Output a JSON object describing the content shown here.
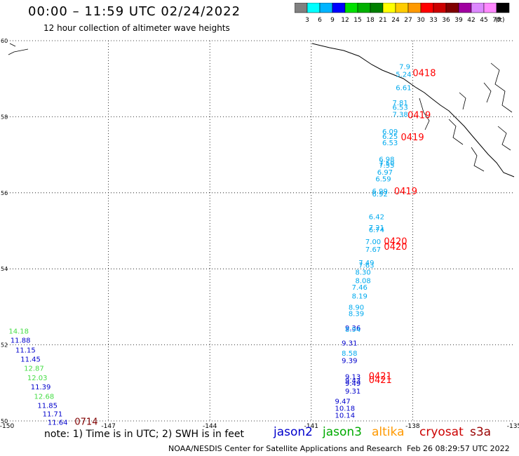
{
  "header": {
    "title": "00:00 – 11:59 UTC 02/24/2022",
    "subtitle": "12 hour collection of altimeter wave heights"
  },
  "colorbar": {
    "unit": "(ft)",
    "segments": [
      {
        "color": "#808080",
        "label": "3"
      },
      {
        "color": "#00ffff",
        "label": "6"
      },
      {
        "color": "#00b4ff",
        "label": "9"
      },
      {
        "color": "#0000ff",
        "label": "12"
      },
      {
        "color": "#00e000",
        "label": "15"
      },
      {
        "color": "#00b000",
        "label": "18"
      },
      {
        "color": "#008000",
        "label": "21"
      },
      {
        "color": "#ffff00",
        "label": "24"
      },
      {
        "color": "#ffcc00",
        "label": "27"
      },
      {
        "color": "#ff9900",
        "label": "30"
      },
      {
        "color": "#ff0000",
        "label": "33"
      },
      {
        "color": "#cc0000",
        "label": "36"
      },
      {
        "color": "#800000",
        "label": "39"
      },
      {
        "color": "#a000a0",
        "label": "42"
      },
      {
        "color": "#dd88ff",
        "label": "45"
      },
      {
        "color": "#ff88ff",
        "label": "70"
      },
      {
        "color": "#000000",
        "label": ""
      }
    ]
  },
  "map": {
    "lon_range": [
      -150,
      -135
    ],
    "lat_range": [
      50,
      60
    ],
    "lon_ticks": [
      "-150",
      "-147",
      "-144",
      "-141",
      "-138",
      "-135"
    ],
    "lat_ticks": [
      "60",
      "58",
      "56",
      "54",
      "52",
      "50"
    ],
    "gridlines": true
  },
  "colors": {
    "cryosat": "#00aaee",
    "jason3_green": "#44dd44",
    "jason2_blue": "#0000cc",
    "time_red": "#ff0000",
    "time_dark": "#800000"
  },
  "observations": [
    {
      "track": "east",
      "lon": -138.4,
      "lat": 59.25,
      "value": "7.9",
      "color": "#00aaee"
    },
    {
      "track": "east",
      "lon": -138.5,
      "lat": 59.05,
      "value": "5.24",
      "color": "#00aaee"
    },
    {
      "track": "east",
      "lon": -138.5,
      "lat": 58.7,
      "value": "6.61",
      "color": "#00aaee"
    },
    {
      "track": "east",
      "lon": -138.6,
      "lat": 58.3,
      "value": "7.81",
      "color": "#00aaee"
    },
    {
      "track": "east",
      "lon": -138.6,
      "lat": 58.18,
      "value": "6.53",
      "color": "#00aaee"
    },
    {
      "track": "east",
      "lon": -138.6,
      "lat": 58.0,
      "value": "7.38",
      "color": "#00aaee"
    },
    {
      "track": "east",
      "lon": -138.9,
      "lat": 57.55,
      "value": "6.09",
      "color": "#00aaee"
    },
    {
      "track": "east",
      "lon": -138.9,
      "lat": 57.42,
      "value": "6.25",
      "color": "#00aaee"
    },
    {
      "track": "east",
      "lon": -138.9,
      "lat": 57.25,
      "value": "6.53",
      "color": "#00aaee"
    },
    {
      "track": "east",
      "lon": -139.0,
      "lat": 56.82,
      "value": "6.98",
      "color": "#00aaee"
    },
    {
      "track": "east",
      "lon": -139.0,
      "lat": 56.72,
      "value": "7.50",
      "color": "#00aaee"
    },
    {
      "track": "east",
      "lon": -139.0,
      "lat": 56.66,
      "value": "7.55",
      "color": "#00aaee"
    },
    {
      "track": "east",
      "lon": -139.05,
      "lat": 56.48,
      "value": "6.97",
      "color": "#00aaee"
    },
    {
      "track": "east",
      "lon": -139.1,
      "lat": 56.3,
      "value": "6.59",
      "color": "#00aaee"
    },
    {
      "track": "east",
      "lon": -139.2,
      "lat": 55.98,
      "value": "6.99",
      "color": "#00aaee"
    },
    {
      "track": "east",
      "lon": -139.2,
      "lat": 55.9,
      "value": "6.92",
      "color": "#00aaee"
    },
    {
      "track": "east",
      "lon": -139.3,
      "lat": 55.3,
      "value": "6.42",
      "color": "#00aaee"
    },
    {
      "track": "east",
      "lon": -139.3,
      "lat": 55.02,
      "value": "7.21",
      "color": "#00aaee"
    },
    {
      "track": "east",
      "lon": -139.3,
      "lat": 54.96,
      "value": "6.74",
      "color": "#00aaee"
    },
    {
      "track": "east",
      "lon": -139.4,
      "lat": 54.65,
      "value": "7.00",
      "color": "#00aaee"
    },
    {
      "track": "east",
      "lon": -139.4,
      "lat": 54.45,
      "value": "7.67",
      "color": "#00aaee"
    },
    {
      "track": "east",
      "lon": -139.6,
      "lat": 54.1,
      "value": "7.49",
      "color": "#00aaee"
    },
    {
      "track": "east",
      "lon": -139.6,
      "lat": 54.03,
      "value": "7.63",
      "color": "#00aaee"
    },
    {
      "track": "east",
      "lon": -139.7,
      "lat": 53.85,
      "value": "8.30",
      "color": "#00aaee"
    },
    {
      "track": "east",
      "lon": -139.7,
      "lat": 53.63,
      "value": "8.08",
      "color": "#00aaee"
    },
    {
      "track": "east",
      "lon": -139.8,
      "lat": 53.45,
      "value": "7.46",
      "color": "#00aaee"
    },
    {
      "track": "east",
      "lon": -139.8,
      "lat": 53.22,
      "value": "8.19",
      "color": "#00aaee"
    },
    {
      "track": "east",
      "lon": -139.9,
      "lat": 52.92,
      "value": "8.90",
      "color": "#00aaee"
    },
    {
      "track": "east",
      "lon": -139.9,
      "lat": 52.76,
      "value": "8.39",
      "color": "#00aaee"
    },
    {
      "track": "east",
      "lon": -140.0,
      "lat": 52.38,
      "value": "9.36",
      "color": "#0000cc"
    },
    {
      "track": "east",
      "lon": -140.0,
      "lat": 52.34,
      "value": "8.94",
      "color": "#00aaee"
    },
    {
      "track": "east",
      "lon": -140.1,
      "lat": 51.98,
      "value": "9.31",
      "color": "#0000cc"
    },
    {
      "track": "east",
      "lon": -140.1,
      "lat": 51.72,
      "value": "8.58",
      "color": "#00aaee"
    },
    {
      "track": "east",
      "lon": -140.1,
      "lat": 51.52,
      "value": "9.39",
      "color": "#0000cc"
    },
    {
      "track": "east",
      "lon": -140.0,
      "lat": 51.1,
      "value": "9.13",
      "color": "#0000cc"
    },
    {
      "track": "east",
      "lon": -140.0,
      "lat": 51.0,
      "value": "9.43",
      "color": "#0000cc"
    },
    {
      "track": "east",
      "lon": -140.0,
      "lat": 50.92,
      "value": "9.49",
      "color": "#0000cc"
    },
    {
      "track": "east",
      "lon": -140.0,
      "lat": 50.72,
      "value": "9.31",
      "color": "#0000cc"
    },
    {
      "track": "east",
      "lon": -140.3,
      "lat": 50.45,
      "value": "9.47",
      "color": "#0000cc"
    },
    {
      "track": "east",
      "lon": -140.3,
      "lat": 50.27,
      "value": "10.18",
      "color": "#0000cc"
    },
    {
      "track": "east",
      "lon": -140.3,
      "lat": 50.08,
      "value": "10.14",
      "color": "#0000cc"
    },
    {
      "track": "west",
      "lon": -149.95,
      "lat": 52.3,
      "value": "14.18",
      "color": "#44dd44"
    },
    {
      "track": "west",
      "lon": -149.9,
      "lat": 52.06,
      "value": "11.88",
      "color": "#0000cc"
    },
    {
      "track": "west",
      "lon": -149.75,
      "lat": 51.8,
      "value": "11.15",
      "color": "#0000cc"
    },
    {
      "track": "west",
      "lon": -149.6,
      "lat": 51.56,
      "value": "11.45",
      "color": "#0000cc"
    },
    {
      "track": "west",
      "lon": -149.5,
      "lat": 51.32,
      "value": "12.87",
      "color": "#44dd44"
    },
    {
      "track": "west",
      "lon": -149.4,
      "lat": 51.07,
      "value": "12.03",
      "color": "#44dd44"
    },
    {
      "track": "west",
      "lon": -149.3,
      "lat": 50.83,
      "value": "11.39",
      "color": "#0000cc"
    },
    {
      "track": "west",
      "lon": -149.2,
      "lat": 50.58,
      "value": "12.68",
      "color": "#44dd44"
    },
    {
      "track": "west",
      "lon": -149.1,
      "lat": 50.34,
      "value": "11.85",
      "color": "#0000cc"
    },
    {
      "track": "west",
      "lon": -148.95,
      "lat": 50.12,
      "value": "11.71",
      "color": "#0000cc"
    },
    {
      "track": "west",
      "lon": -148.8,
      "lat": 49.9,
      "value": "11.64",
      "color": "#0000cc"
    }
  ],
  "time_labels": [
    {
      "lon": -138.0,
      "lat": 59.07,
      "text": "0418",
      "color": "#ff0000"
    },
    {
      "lon": -138.15,
      "lat": 57.96,
      "text": "0419",
      "color": "#ff0000"
    },
    {
      "lon": -138.35,
      "lat": 57.38,
      "text": "0419",
      "color": "#ff0000"
    },
    {
      "lon": -138.55,
      "lat": 55.96,
      "text": "0419",
      "color": "#ff0000"
    },
    {
      "lon": -138.85,
      "lat": 54.64,
      "text": "0420",
      "color": "#ff0000"
    },
    {
      "lon": -138.85,
      "lat": 54.5,
      "text": "0420",
      "color": "#ff0000"
    },
    {
      "lon": -139.3,
      "lat": 51.1,
      "text": "0421",
      "color": "#ff0000"
    },
    {
      "lon": -139.3,
      "lat": 51.0,
      "text": "0421",
      "color": "#ff0000"
    },
    {
      "lon": -148.0,
      "lat": 49.9,
      "text": "0714",
      "color": "#800000"
    }
  ],
  "footer": {
    "note": "note:  1) Time is in UTC;  2) SWH is in feet",
    "satellites": [
      {
        "name": "jason2",
        "color": "#0000cc"
      },
      {
        "name": "jason3",
        "color": "#00aa00"
      },
      {
        "name": "altika",
        "color": "#ff9900"
      },
      {
        "name": "cryosat",
        "color": "#cc0000"
      },
      {
        "name": "s3a",
        "color": "#990000"
      }
    ],
    "credit": "NOAA/NESDIS Center for Satellite Applications and Research",
    "timestamp": "Feb 26 08:29:57 UTC 2022"
  }
}
